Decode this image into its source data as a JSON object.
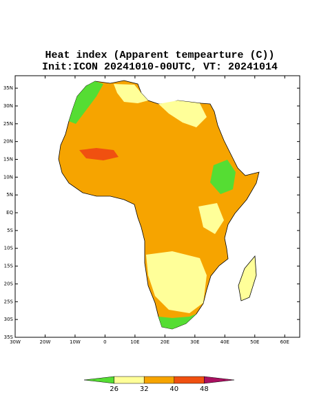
{
  "map": {
    "title": "Heat index (Apparent tempearture (C))",
    "subtitle": "Init:ICON 20241010-00UTC, VT: 20241014",
    "xlim": [
      -30,
      65
    ],
    "ylim": [
      -35,
      38.5
    ],
    "xticks": [
      {
        "value": -30,
        "label": "30W"
      },
      {
        "value": -20,
        "label": "20W"
      },
      {
        "value": -10,
        "label": "10W"
      },
      0,
      {
        "value": 10,
        "label": "10E"
      },
      {
        "value": 20,
        "label": "20E"
      },
      {
        "value": 30,
        "label": "30E"
      },
      {
        "value": 40,
        "label": "40E"
      },
      {
        "value": 50,
        "label": "50E"
      },
      {
        "value": 60,
        "label": "60E"
      }
    ],
    "yticks": [
      {
        "value": 35,
        "label": "35N"
      },
      {
        "value": 30,
        "label": "30N"
      },
      {
        "value": 25,
        "label": "25N"
      },
      {
        "value": 20,
        "label": "20N"
      },
      {
        "value": 15,
        "label": "15N"
      },
      {
        "value": 10,
        "label": "10N"
      },
      {
        "value": 5,
        "label": "5N"
      },
      {
        "value": 0,
        "label": "EQ"
      },
      {
        "value": -5,
        "label": "5S"
      },
      {
        "value": -10,
        "label": "10S"
      },
      {
        "value": -15,
        "label": "15S"
      },
      {
        "value": -20,
        "label": "20S"
      },
      {
        "value": -25,
        "label": "25S"
      },
      {
        "value": -30,
        "label": "30S"
      },
      {
        "value": -35,
        "label": "35S"
      }
    ],
    "colorbar": {
      "colors": [
        "#55dd33",
        "#ffff99",
        "#f6a400",
        "#f05010",
        "#aa1060"
      ],
      "labels": [
        26,
        32,
        40,
        48
      ]
    }
  }
}
